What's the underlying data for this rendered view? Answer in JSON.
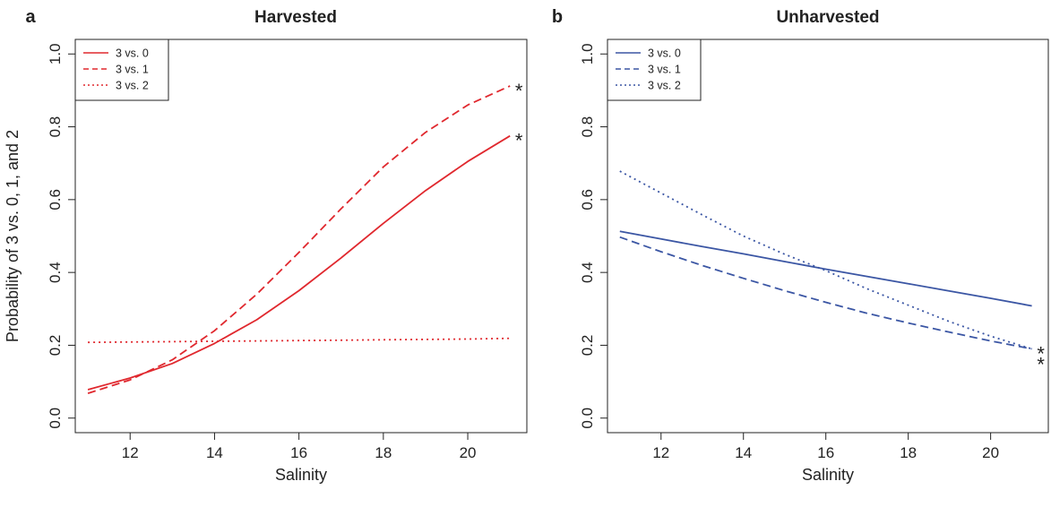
{
  "chart_data": [
    {
      "type": "line",
      "panel_label": "a",
      "title": "Harvested",
      "xlabel": "Salinity",
      "ylabel": "Probability of 3 vs. 0, 1, and 2",
      "xlim": [
        10.7,
        21.4
      ],
      "ylim": [
        -0.04,
        1.04
      ],
      "xticks": [
        12,
        14,
        16,
        18,
        20
      ],
      "yticks": [
        0.0,
        0.2,
        0.4,
        0.6,
        0.8,
        1.0
      ],
      "ytick_labels": [
        "0.0",
        "0.2",
        "0.4",
        "0.6",
        "0.8",
        "1.0"
      ],
      "legend_position": "top-left",
      "color": "#e0282e",
      "x": [
        11,
        12,
        13,
        14,
        15,
        16,
        17,
        18,
        19,
        20,
        21
      ],
      "series": [
        {
          "name": "3 vs. 0",
          "style": "solid",
          "values": [
            0.078,
            0.11,
            0.15,
            0.205,
            0.27,
            0.35,
            0.44,
            0.535,
            0.625,
            0.705,
            0.775
          ],
          "star": true
        },
        {
          "name": "3 vs. 1",
          "style": "dashed",
          "values": [
            0.068,
            0.105,
            0.16,
            0.24,
            0.34,
            0.455,
            0.575,
            0.69,
            0.785,
            0.86,
            0.912
          ],
          "star": true
        },
        {
          "name": "3 vs. 2",
          "style": "dotted",
          "values": [
            0.208,
            0.209,
            0.21,
            0.211,
            0.212,
            0.213,
            0.214,
            0.215,
            0.216,
            0.217,
            0.219
          ],
          "star": false
        }
      ],
      "star_symbol": "*"
    },
    {
      "type": "line",
      "panel_label": "b",
      "title": "Unharvested",
      "xlabel": "Salinity",
      "ylabel": "",
      "xlim": [
        10.7,
        21.4
      ],
      "ylim": [
        -0.04,
        1.04
      ],
      "xticks": [
        12,
        14,
        16,
        18,
        20
      ],
      "yticks": [
        0.0,
        0.2,
        0.4,
        0.6,
        0.8,
        1.0
      ],
      "ytick_labels": [
        "0.0",
        "0.2",
        "0.4",
        "0.6",
        "0.8",
        "1.0"
      ],
      "legend_position": "top-left",
      "color": "#3b56a4",
      "x": [
        11,
        12,
        13,
        14,
        15,
        16,
        17,
        18,
        19,
        20,
        21
      ],
      "series": [
        {
          "name": "3 vs. 0",
          "style": "solid",
          "values": [
            0.513,
            0.492,
            0.471,
            0.451,
            0.43,
            0.409,
            0.389,
            0.369,
            0.349,
            0.329,
            0.308
          ],
          "star": false
        },
        {
          "name": "3 vs. 1",
          "style": "dashed",
          "values": [
            0.497,
            0.457,
            0.419,
            0.384,
            0.35,
            0.318,
            0.288,
            0.261,
            0.236,
            0.212,
            0.19
          ],
          "star": true
        },
        {
          "name": "3 vs. 2",
          "style": "dotted",
          "values": [
            0.678,
            0.618,
            0.558,
            0.5,
            0.45,
            0.405,
            0.355,
            0.31,
            0.265,
            0.225,
            0.19
          ],
          "star": true
        }
      ],
      "star_symbol": "*"
    }
  ]
}
